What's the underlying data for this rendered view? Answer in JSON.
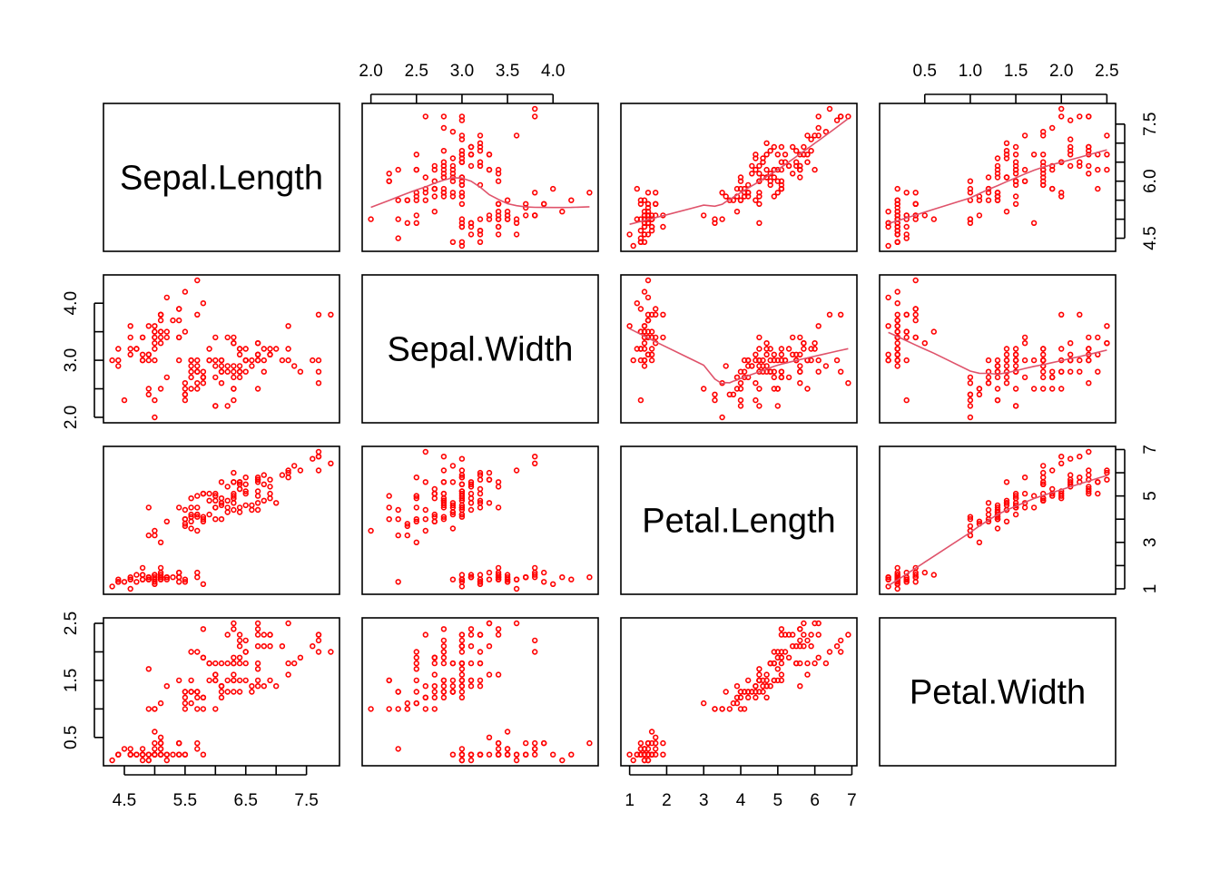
{
  "chart_data": {
    "type": "scatter",
    "kind": "pairs scatterplot matrix with lowess smooth in upper panels",
    "variables": [
      "Sepal.Length",
      "Sepal.Width",
      "Petal.Length",
      "Petal.Width"
    ],
    "point_color": "#FF0000",
    "smooth_color": "#DF536B",
    "grid": false,
    "axes": [
      {
        "variable": "Sepal.Length",
        "range": [
          4.3,
          7.9
        ],
        "ticks": [
          4.5,
          5.0,
          5.5,
          6.0,
          6.5,
          7.0,
          7.5
        ],
        "bottom_labels": [
          "4.5",
          "5.5",
          "6.5",
          "7.5"
        ],
        "right_labels": [
          "4.5",
          "6.0",
          "7.5"
        ]
      },
      {
        "variable": "Sepal.Width",
        "range": [
          2.0,
          4.4
        ],
        "ticks": [
          2.0,
          2.5,
          3.0,
          3.5,
          4.0
        ],
        "top_labels": [
          "2.0",
          "2.5",
          "3.0",
          "3.5",
          "4.0"
        ],
        "left_labels": [
          "2.0",
          "3.0",
          "4.0"
        ]
      },
      {
        "variable": "Petal.Length",
        "range": [
          1.0,
          6.9
        ],
        "ticks": [
          1,
          2,
          3,
          4,
          5,
          6,
          7
        ],
        "bottom_labels": [
          "1",
          "2",
          "3",
          "4",
          "5",
          "6",
          "7"
        ],
        "right_labels": [
          "1",
          "3",
          "5",
          "7"
        ]
      },
      {
        "variable": "Petal.Width",
        "range": [
          0.1,
          2.5
        ],
        "ticks": [
          0.5,
          1.0,
          1.5,
          2.0,
          2.5
        ],
        "top_labels": [
          "0.5",
          "1.0",
          "1.5",
          "2.0",
          "2.5"
        ],
        "left_labels": [
          "0.5",
          "1.5",
          "2.5"
        ]
      }
    ],
    "data": {
      "Sepal.Length": [
        5.1,
        4.9,
        4.7,
        4.6,
        5.0,
        5.4,
        4.6,
        5.0,
        4.4,
        4.9,
        5.4,
        4.8,
        4.8,
        4.3,
        5.8,
        5.7,
        5.4,
        5.1,
        5.7,
        5.1,
        5.4,
        5.1,
        4.6,
        5.1,
        4.8,
        5.0,
        5.0,
        5.2,
        5.2,
        4.7,
        4.8,
        5.4,
        5.2,
        5.5,
        4.9,
        5.0,
        5.5,
        4.9,
        4.4,
        5.1,
        5.0,
        4.5,
        4.4,
        5.0,
        5.1,
        4.8,
        5.1,
        4.6,
        5.3,
        5.0,
        7.0,
        6.4,
        6.9,
        5.5,
        6.5,
        5.7,
        6.3,
        4.9,
        6.6,
        5.2,
        5.0,
        5.9,
        6.0,
        6.1,
        5.6,
        6.7,
        5.6,
        5.8,
        6.2,
        5.6,
        5.9,
        6.1,
        6.3,
        6.1,
        6.4,
        6.6,
        6.8,
        6.7,
        6.0,
        5.7,
        5.5,
        5.5,
        5.8,
        6.0,
        5.4,
        6.0,
        6.7,
        6.3,
        5.6,
        5.5,
        5.5,
        6.1,
        5.8,
        5.0,
        5.6,
        5.7,
        5.7,
        6.2,
        5.1,
        5.7,
        6.3,
        5.8,
        7.1,
        6.3,
        6.5,
        7.6,
        4.9,
        7.3,
        6.7,
        7.2,
        6.5,
        6.4,
        6.8,
        5.7,
        5.8,
        6.4,
        6.5,
        7.7,
        7.7,
        6.0,
        6.9,
        5.6,
        7.7,
        6.3,
        6.7,
        7.2,
        6.2,
        6.1,
        6.4,
        7.2,
        7.4,
        7.9,
        6.4,
        6.3,
        6.1,
        7.7,
        6.3,
        6.4,
        6.0,
        6.9,
        6.7,
        6.9,
        5.8,
        6.8,
        6.7,
        6.7,
        6.3,
        6.5,
        6.2,
        5.9
      ],
      "Sepal.Width": [
        3.5,
        3.0,
        3.2,
        3.1,
        3.6,
        3.9,
        3.4,
        3.4,
        2.9,
        3.1,
        3.7,
        3.4,
        3.0,
        3.0,
        4.0,
        4.4,
        3.9,
        3.5,
        3.8,
        3.8,
        3.4,
        3.7,
        3.6,
        3.3,
        3.4,
        3.0,
        3.4,
        3.5,
        3.4,
        3.2,
        3.1,
        3.4,
        4.1,
        4.2,
        3.1,
        3.2,
        3.5,
        3.6,
        3.0,
        3.4,
        3.5,
        2.3,
        3.2,
        3.5,
        3.8,
        3.0,
        3.8,
        3.2,
        3.7,
        3.3,
        3.2,
        3.2,
        3.1,
        2.3,
        2.8,
        2.8,
        3.3,
        2.4,
        2.9,
        2.7,
        2.0,
        3.0,
        2.2,
        2.9,
        2.9,
        3.1,
        3.0,
        2.7,
        2.2,
        2.5,
        3.2,
        2.8,
        2.5,
        2.8,
        2.9,
        3.0,
        2.8,
        3.0,
        2.9,
        2.6,
        2.4,
        2.4,
        2.7,
        2.7,
        3.0,
        3.4,
        3.1,
        2.3,
        3.0,
        2.5,
        2.6,
        3.0,
        2.6,
        2.3,
        2.7,
        3.0,
        2.9,
        2.9,
        2.5,
        2.8,
        3.3,
        2.7,
        3.0,
        2.9,
        3.0,
        3.0,
        2.5,
        2.9,
        2.5,
        3.6,
        3.2,
        2.7,
        3.0,
        2.5,
        2.8,
        3.2,
        3.0,
        3.8,
        2.6,
        2.2,
        3.2,
        2.8,
        2.8,
        2.7,
        3.3,
        3.2,
        2.8,
        3.0,
        2.8,
        3.0,
        2.8,
        3.8,
        2.8,
        2.8,
        2.6,
        3.0,
        3.4,
        3.1,
        3.0,
        3.1,
        3.1,
        3.1,
        2.7,
        3.2,
        3.3,
        3.0,
        2.5,
        3.0,
        3.4,
        3.0
      ],
      "Petal.Length": [
        1.4,
        1.4,
        1.3,
        1.5,
        1.4,
        1.7,
        1.4,
        1.5,
        1.4,
        1.5,
        1.5,
        1.6,
        1.4,
        1.1,
        1.2,
        1.5,
        1.3,
        1.4,
        1.7,
        1.5,
        1.7,
        1.5,
        1.0,
        1.7,
        1.9,
        1.6,
        1.6,
        1.5,
        1.4,
        1.6,
        1.6,
        1.5,
        1.5,
        1.4,
        1.5,
        1.2,
        1.3,
        1.4,
        1.3,
        1.5,
        1.3,
        1.3,
        1.3,
        1.6,
        1.9,
        1.4,
        1.6,
        1.4,
        1.5,
        1.4,
        4.7,
        4.5,
        4.9,
        4.0,
        4.6,
        4.5,
        4.7,
        3.3,
        4.6,
        3.9,
        3.5,
        4.2,
        4.0,
        4.7,
        3.6,
        4.4,
        4.5,
        4.1,
        4.5,
        3.9,
        4.8,
        4.0,
        4.9,
        4.7,
        4.3,
        4.4,
        4.8,
        5.0,
        4.5,
        3.5,
        3.8,
        3.7,
        3.9,
        5.1,
        4.5,
        4.5,
        4.7,
        4.4,
        4.1,
        4.0,
        4.4,
        4.6,
        4.0,
        3.3,
        4.2,
        4.2,
        4.2,
        4.3,
        3.0,
        4.1,
        6.0,
        5.1,
        5.9,
        5.6,
        5.8,
        6.6,
        4.5,
        6.3,
        5.8,
        6.1,
        5.1,
        5.3,
        5.5,
        5.0,
        5.1,
        5.3,
        5.5,
        6.7,
        6.9,
        5.0,
        5.7,
        4.9,
        6.7,
        4.9,
        5.7,
        6.0,
        4.8,
        4.9,
        5.6,
        5.8,
        6.1,
        6.4,
        5.6,
        5.1,
        5.6,
        6.1,
        5.6,
        5.5,
        4.8,
        5.4,
        5.6,
        5.1,
        5.1,
        5.9,
        5.7,
        5.2,
        5.0,
        5.2,
        5.4,
        5.1
      ],
      "Petal.Width": [
        0.2,
        0.2,
        0.2,
        0.2,
        0.2,
        0.4,
        0.3,
        0.2,
        0.2,
        0.1,
        0.2,
        0.2,
        0.1,
        0.1,
        0.2,
        0.4,
        0.4,
        0.3,
        0.3,
        0.3,
        0.2,
        0.4,
        0.2,
        0.5,
        0.2,
        0.2,
        0.4,
        0.2,
        0.2,
        0.2,
        0.2,
        0.4,
        0.1,
        0.2,
        0.2,
        0.2,
        0.2,
        0.1,
        0.2,
        0.2,
        0.3,
        0.3,
        0.2,
        0.6,
        0.4,
        0.3,
        0.2,
        0.2,
        0.2,
        0.2,
        1.4,
        1.5,
        1.5,
        1.3,
        1.5,
        1.3,
        1.6,
        1.0,
        1.3,
        1.4,
        1.0,
        1.5,
        1.0,
        1.4,
        1.3,
        1.4,
        1.5,
        1.0,
        1.5,
        1.1,
        1.8,
        1.3,
        1.5,
        1.2,
        1.3,
        1.4,
        1.4,
        1.7,
        1.5,
        1.0,
        1.1,
        1.0,
        1.2,
        1.6,
        1.5,
        1.6,
        1.5,
        1.3,
        1.3,
        1.3,
        1.2,
        1.4,
        1.2,
        1.0,
        1.3,
        1.2,
        1.3,
        1.3,
        1.1,
        1.3,
        2.5,
        1.9,
        2.1,
        1.8,
        2.2,
        2.1,
        1.7,
        1.8,
        1.8,
        2.5,
        2.0,
        1.9,
        2.1,
        2.0,
        2.4,
        2.3,
        1.8,
        2.2,
        2.3,
        1.5,
        2.3,
        2.0,
        2.0,
        1.8,
        2.1,
        1.8,
        1.8,
        1.8,
        2.1,
        1.6,
        1.9,
        2.0,
        2.2,
        1.5,
        1.4,
        2.3,
        2.4,
        1.8,
        1.8,
        2.1,
        2.4,
        2.3,
        1.9,
        2.3,
        2.5,
        2.3,
        1.9,
        2.0,
        2.3,
        1.8
      ]
    }
  }
}
